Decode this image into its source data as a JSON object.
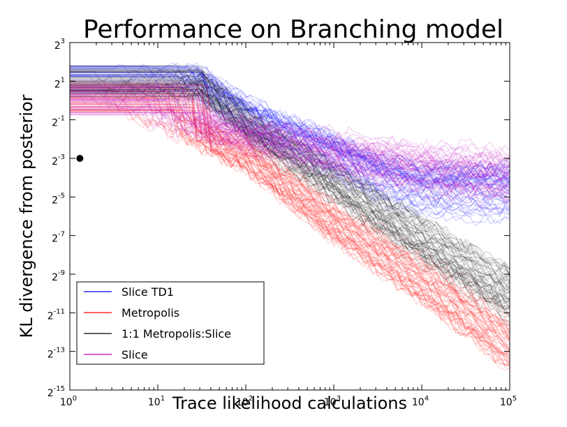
{
  "chart_data": {
    "type": "line",
    "title": "Performance on Branching model",
    "xlabel": "Trace likelihood calculations",
    "ylabel": "KL divergence from posterior",
    "xscale": "log10",
    "yscale": "log2",
    "xlim": [
      1,
      100000
    ],
    "ylim_log2": [
      -15,
      3
    ],
    "x_ticks": [
      {
        "base": "10",
        "exp": "0"
      },
      {
        "base": "10",
        "exp": "1"
      },
      {
        "base": "10",
        "exp": "2"
      },
      {
        "base": "10",
        "exp": "3"
      },
      {
        "base": "10",
        "exp": "4"
      },
      {
        "base": "10",
        "exp": "5"
      }
    ],
    "y_ticks": [
      {
        "base": "2",
        "exp": "3"
      },
      {
        "base": "2",
        "exp": "1"
      },
      {
        "base": "2",
        "exp": "-1"
      },
      {
        "base": "2",
        "exp": "-3"
      },
      {
        "base": "2",
        "exp": "-5"
      },
      {
        "base": "2",
        "exp": "-7"
      },
      {
        "base": "2",
        "exp": "-9"
      },
      {
        "base": "2",
        "exp": "-11"
      },
      {
        "base": "2",
        "exp": "-13"
      },
      {
        "base": "2",
        "exp": "-15"
      }
    ],
    "grid": false,
    "legend_position": "lower-left",
    "runs_per_series": 50,
    "series": [
      {
        "name": "Slice TD1",
        "color": "#0000ff",
        "x": [
          1,
          30,
          100,
          1000,
          3000,
          10000,
          100000
        ],
        "y_log2": [
          1.0,
          0.9,
          -0.8,
          -2.8,
          -3.9,
          -4.6,
          -4.7
        ]
      },
      {
        "name": "Metropolis",
        "color": "#ff0000",
        "x": [
          1,
          10,
          100,
          1000,
          10000,
          100000
        ],
        "y_log2": [
          0.2,
          -0.8,
          -2.8,
          -6.3,
          -9.3,
          -12.6
        ]
      },
      {
        "name": "1:1 Metropolis:Slice",
        "color": "#000000",
        "x": [
          1,
          30,
          100,
          1000,
          10000,
          100000
        ],
        "y_log2": [
          1.0,
          0.8,
          -1.2,
          -4.2,
          -7.2,
          -10.0
        ]
      },
      {
        "name": "Slice",
        "color": "#bf00bf",
        "x": [
          1,
          10,
          100,
          1000,
          10000,
          100000
        ],
        "y_log2": [
          0.0,
          -0.8,
          -1.8,
          -2.8,
          -3.6,
          -4.0
        ]
      }
    ],
    "marker": {
      "x": 1.3,
      "y_log2": -3.0,
      "color": "#000000"
    }
  }
}
